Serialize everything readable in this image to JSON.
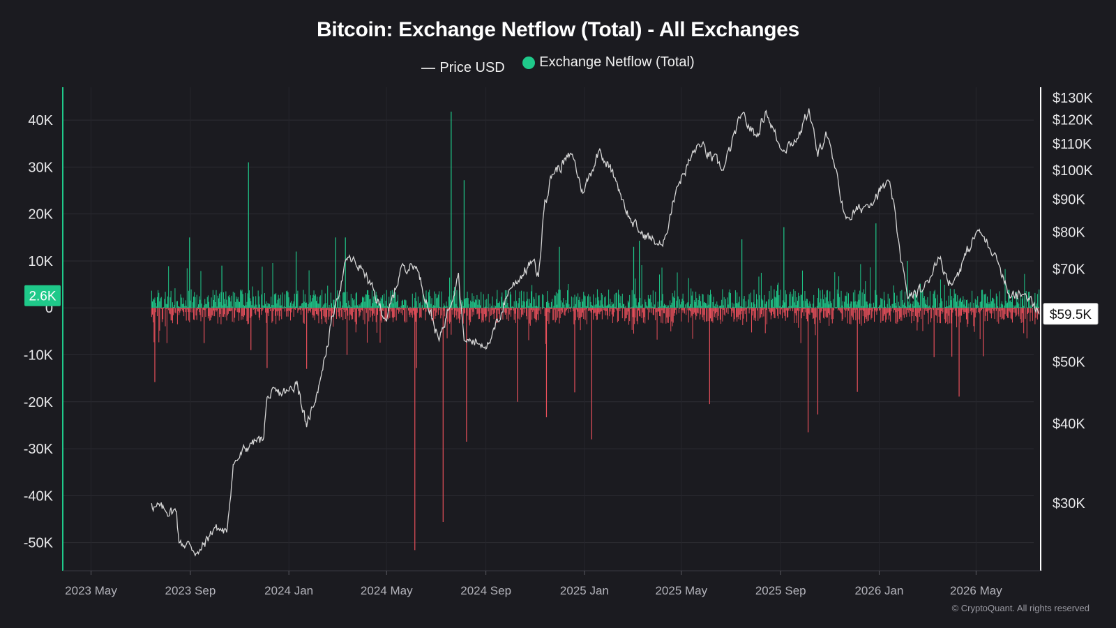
{
  "chart_data": {
    "type": "bar",
    "title": "Bitcoin: Exchange Netflow (Total) - All Exchanges",
    "legend": [
      {
        "name": "Price USD",
        "symbol": "line",
        "color": "#d6d6d6"
      },
      {
        "name": "Exchange Netflow (Total)",
        "symbol": "dot",
        "color": "#1fc98a"
      }
    ],
    "legend_position": "top-center",
    "x_axis": {
      "type": "date",
      "ticks": [
        "2023 May",
        "2023 Sep",
        "2024 Jan",
        "2024 May",
        "2024 Sep",
        "2025 Jan",
        "2025 May",
        "2025 Sep",
        "2026 Jan",
        "2026 May"
      ],
      "tick_dates": [
        "2023-05-01",
        "2023-09-01",
        "2024-01-01",
        "2024-05-01",
        "2024-09-01",
        "2025-01-01",
        "2025-05-01",
        "2025-09-01",
        "2026-01-01",
        "2026-05-01"
      ],
      "range": [
        "2023-03-27",
        "2026-07-20"
      ]
    },
    "y_axis_left": {
      "label": "Exchange Netflow (Total)",
      "ticks": [
        "40K",
        "30K",
        "20K",
        "10K",
        "0",
        "-10K",
        "-20K",
        "-30K",
        "-40K",
        "-50K"
      ],
      "tick_values": [
        40000,
        30000,
        20000,
        10000,
        0,
        -10000,
        -20000,
        -30000,
        -40000,
        -50000
      ],
      "range": [
        -56000,
        47000
      ]
    },
    "y_axis_right": {
      "label": "Price USD",
      "scale": "log",
      "ticks": [
        "$130K",
        "$120K",
        "$110K",
        "$100K",
        "$90K",
        "$80K",
        "$70K",
        "$50K",
        "$40K",
        "$30K"
      ],
      "tick_values": [
        130000,
        120000,
        110000,
        100000,
        90000,
        80000,
        70000,
        50000,
        40000,
        30000
      ],
      "range": [
        23500,
        135000
      ]
    },
    "grid": true,
    "netflow_series": {
      "name": "Exchange Netflow (Total)",
      "positive_color": "#1fc98a",
      "negative_color": "#e8505b",
      "date_range": [
        "2023-07-15",
        "2026-07-18"
      ],
      "typical_inflow": 4000,
      "typical_outflow": -3500,
      "spikes": [
        {
          "date": "2023-07-19",
          "value": -15800
        },
        {
          "date": "2023-08-31",
          "value": 15000
        },
        {
          "date": "2023-09-18",
          "value": -7500
        },
        {
          "date": "2023-10-10",
          "value": 9000
        },
        {
          "date": "2023-11-12",
          "value": 31000
        },
        {
          "date": "2023-11-15",
          "value": -9000
        },
        {
          "date": "2023-12-05",
          "value": -12800
        },
        {
          "date": "2024-01-10",
          "value": 12000
        },
        {
          "date": "2024-01-23",
          "value": -13000
        },
        {
          "date": "2024-02-28",
          "value": 15000
        },
        {
          "date": "2024-03-11",
          "value": 15000
        },
        {
          "date": "2024-03-13",
          "value": -10000
        },
        {
          "date": "2024-06-05",
          "value": -51600
        },
        {
          "date": "2024-06-07",
          "value": -12800
        },
        {
          "date": "2024-07-20",
          "value": 41800
        },
        {
          "date": "2024-07-10",
          "value": -45600
        },
        {
          "date": "2024-08-05",
          "value": 27200
        },
        {
          "date": "2024-08-08",
          "value": -28500
        },
        {
          "date": "2024-10-10",
          "value": -20000
        },
        {
          "date": "2024-11-15",
          "value": -23300
        },
        {
          "date": "2024-12-01",
          "value": 13000
        },
        {
          "date": "2024-12-20",
          "value": -18000
        },
        {
          "date": "2025-01-10",
          "value": -28000
        },
        {
          "date": "2025-03-03",
          "value": 13000
        },
        {
          "date": "2025-03-10",
          "value": 14300
        },
        {
          "date": "2025-06-05",
          "value": -20500
        },
        {
          "date": "2025-07-15",
          "value": 14600
        },
        {
          "date": "2025-09-05",
          "value": 17200
        },
        {
          "date": "2025-10-05",
          "value": -26500
        },
        {
          "date": "2025-10-17",
          "value": -22700
        },
        {
          "date": "2025-12-05",
          "value": -17900
        },
        {
          "date": "2025-12-28",
          "value": 18000
        },
        {
          "date": "2026-02-05",
          "value": 10000
        },
        {
          "date": "2026-03-10",
          "value": -10500
        },
        {
          "date": "2026-04-01",
          "value": -10400
        },
        {
          "date": "2026-04-10",
          "value": -18900
        },
        {
          "date": "2026-05-10",
          "value": -10300
        }
      ]
    },
    "price_series": {
      "name": "Price USD",
      "color": "#d6d6d6",
      "points": [
        {
          "date": "2023-07-15",
          "value": 30000
        },
        {
          "date": "2023-07-20",
          "value": 29600
        },
        {
          "date": "2023-08-01",
          "value": 29200
        },
        {
          "date": "2023-08-15",
          "value": 29100
        },
        {
          "date": "2023-08-18",
          "value": 26000
        },
        {
          "date": "2023-09-01",
          "value": 25800
        },
        {
          "date": "2023-09-11",
          "value": 25000
        },
        {
          "date": "2023-10-01",
          "value": 27500
        },
        {
          "date": "2023-10-16",
          "value": 27000
        },
        {
          "date": "2023-10-24",
          "value": 34500
        },
        {
          "date": "2023-11-15",
          "value": 37300
        },
        {
          "date": "2023-11-30",
          "value": 37700
        },
        {
          "date": "2023-12-05",
          "value": 44000
        },
        {
          "date": "2024-01-01",
          "value": 45000
        },
        {
          "date": "2024-01-11",
          "value": 46700
        },
        {
          "date": "2024-01-23",
          "value": 39500
        },
        {
          "date": "2024-02-09",
          "value": 47000
        },
        {
          "date": "2024-02-28",
          "value": 62000
        },
        {
          "date": "2024-03-14",
          "value": 73000
        },
        {
          "date": "2024-04-01",
          "value": 70000
        },
        {
          "date": "2024-05-01",
          "value": 58000
        },
        {
          "date": "2024-05-20",
          "value": 71000
        },
        {
          "date": "2024-06-07",
          "value": 70500
        },
        {
          "date": "2024-07-05",
          "value": 54000
        },
        {
          "date": "2024-07-29",
          "value": 69000
        },
        {
          "date": "2024-08-05",
          "value": 54000
        },
        {
          "date": "2024-09-06",
          "value": 53500
        },
        {
          "date": "2024-09-30",
          "value": 65000
        },
        {
          "date": "2024-10-29",
          "value": 72000
        },
        {
          "date": "2024-11-05",
          "value": 68000
        },
        {
          "date": "2024-11-13",
          "value": 90000
        },
        {
          "date": "2024-11-22",
          "value": 98500
        },
        {
          "date": "2024-12-17",
          "value": 106000
        },
        {
          "date": "2024-12-30",
          "value": 92000
        },
        {
          "date": "2025-01-20",
          "value": 108000
        },
        {
          "date": "2025-02-10",
          "value": 96000
        },
        {
          "date": "2025-02-26",
          "value": 84000
        },
        {
          "date": "2025-03-10",
          "value": 80000
        },
        {
          "date": "2025-04-08",
          "value": 76000
        },
        {
          "date": "2025-04-25",
          "value": 94000
        },
        {
          "date": "2025-05-22",
          "value": 110000
        },
        {
          "date": "2025-06-22",
          "value": 100000
        },
        {
          "date": "2025-07-14",
          "value": 122000
        },
        {
          "date": "2025-08-02",
          "value": 113000
        },
        {
          "date": "2025-08-14",
          "value": 124000
        },
        {
          "date": "2025-09-01",
          "value": 108000
        },
        {
          "date": "2025-09-22",
          "value": 112000
        },
        {
          "date": "2025-10-06",
          "value": 125000
        },
        {
          "date": "2025-10-17",
          "value": 105000
        },
        {
          "date": "2025-10-27",
          "value": 115000
        },
        {
          "date": "2025-11-21",
          "value": 84000
        },
        {
          "date": "2025-12-15",
          "value": 88000
        },
        {
          "date": "2026-01-14",
          "value": 96000
        },
        {
          "date": "2026-02-05",
          "value": 63000
        },
        {
          "date": "2026-02-25",
          "value": 65000
        },
        {
          "date": "2026-03-15",
          "value": 73000
        },
        {
          "date": "2026-04-01",
          "value": 66000
        },
        {
          "date": "2026-05-03",
          "value": 80500
        },
        {
          "date": "2026-05-25",
          "value": 74000
        },
        {
          "date": "2026-06-12",
          "value": 63000
        },
        {
          "date": "2026-07-01",
          "value": 64000
        },
        {
          "date": "2026-07-18",
          "value": 59500
        }
      ]
    },
    "current_netflow_label": "2.6K",
    "current_netflow_value": 2600,
    "current_price_label": "$59.5K",
    "current_price_value": 59500
  },
  "copyright": "© CryptoQuant. All rights reserved"
}
